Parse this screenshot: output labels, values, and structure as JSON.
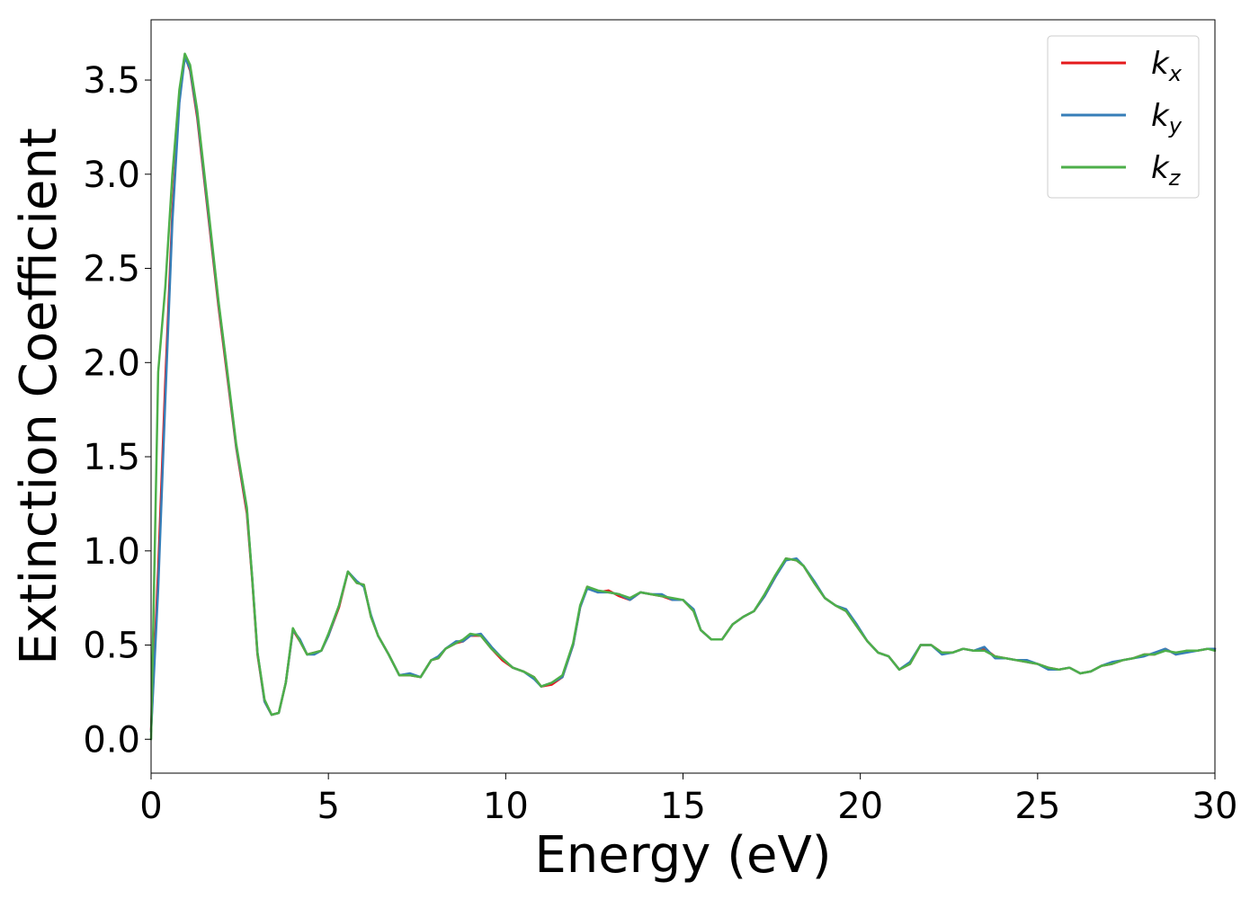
{
  "chart_data": {
    "type": "line",
    "title": "",
    "xlabel": "Energy (eV)",
    "ylabel": "Extinction Coefficient",
    "xlim": [
      0,
      30
    ],
    "ylim": [
      -0.18,
      3.82
    ],
    "xticks": [
      0,
      5,
      10,
      15,
      20,
      25,
      30
    ],
    "xtick_labels": [
      "0",
      "5",
      "10",
      "15",
      "20",
      "25",
      "30"
    ],
    "yticks": [
      0.0,
      0.5,
      1.0,
      1.5,
      2.0,
      2.5,
      3.0,
      3.5
    ],
    "ytick_labels": [
      "0.0",
      "0.5",
      "1.0",
      "1.5",
      "2.0",
      "2.5",
      "3.0",
      "3.5"
    ],
    "grid": false,
    "legend_position": "top-right",
    "series": [
      {
        "name": "k",
        "subscript": "x",
        "color": "#e41a1c",
        "x": [
          0,
          0.2,
          0.4,
          0.6,
          0.8,
          0.95,
          1.1,
          1.3,
          1.6,
          1.9,
          2.1,
          2.4,
          2.7,
          2.85,
          3.0,
          3.2,
          3.4,
          3.6,
          3.8,
          4.0,
          4.2,
          4.4,
          4.6,
          4.8,
          5.0,
          5.3,
          5.55,
          5.8,
          6.0,
          6.2,
          6.4,
          6.7,
          7.0,
          7.3,
          7.6,
          7.9,
          8.1,
          8.3,
          8.6,
          8.8,
          9.0,
          9.3,
          9.6,
          9.9,
          10.2,
          10.5,
          10.8,
          11.0,
          11.3,
          11.6,
          11.9,
          12.1,
          12.3,
          12.6,
          12.9,
          13.2,
          13.5,
          13.8,
          14.1,
          14.4,
          14.7,
          15.0,
          15.3,
          15.5,
          15.8,
          16.1,
          16.4,
          16.7,
          17.0,
          17.3,
          17.6,
          17.9,
          18.2,
          18.4,
          18.7,
          19.0,
          19.3,
          19.6,
          19.9,
          20.2,
          20.5,
          20.8,
          21.1,
          21.4,
          21.7,
          22.0,
          22.3,
          22.6,
          22.9,
          23.2,
          23.5,
          23.8,
          24.1,
          24.4,
          24.7,
          25.0,
          25.3,
          25.6,
          25.9,
          26.2,
          26.5,
          26.8,
          27.1,
          27.4,
          27.7,
          28.0,
          28.3,
          28.6,
          28.9,
          29.2,
          29.5,
          29.8,
          30.0
        ],
        "y": [
          0.05,
          0.9,
          1.9,
          2.8,
          3.4,
          3.63,
          3.55,
          3.3,
          2.8,
          2.3,
          2.0,
          1.55,
          1.2,
          0.85,
          0.45,
          0.2,
          0.13,
          0.14,
          0.3,
          0.58,
          0.52,
          0.45,
          0.46,
          0.47,
          0.55,
          0.7,
          0.89,
          0.83,
          0.82,
          0.65,
          0.55,
          0.45,
          0.34,
          0.34,
          0.33,
          0.42,
          0.43,
          0.48,
          0.51,
          0.52,
          0.55,
          0.55,
          0.48,
          0.42,
          0.38,
          0.36,
          0.33,
          0.28,
          0.29,
          0.33,
          0.5,
          0.7,
          0.81,
          0.78,
          0.79,
          0.76,
          0.74,
          0.78,
          0.77,
          0.76,
          0.74,
          0.74,
          0.68,
          0.58,
          0.53,
          0.53,
          0.61,
          0.65,
          0.68,
          0.76,
          0.86,
          0.96,
          0.95,
          0.92,
          0.83,
          0.75,
          0.71,
          0.68,
          0.6,
          0.52,
          0.46,
          0.44,
          0.37,
          0.4,
          0.5,
          0.5,
          0.46,
          0.46,
          0.48,
          0.47,
          0.48,
          0.44,
          0.43,
          0.42,
          0.41,
          0.4,
          0.38,
          0.37,
          0.38,
          0.35,
          0.36,
          0.39,
          0.4,
          0.42,
          0.43,
          0.45,
          0.45,
          0.48,
          0.45,
          0.47,
          0.47,
          0.48,
          0.48
        ]
      },
      {
        "name": "k",
        "subscript": "y",
        "color": "#377eb8",
        "x": [
          0,
          0.2,
          0.4,
          0.6,
          0.8,
          0.95,
          1.1,
          1.3,
          1.6,
          1.9,
          2.1,
          2.4,
          2.7,
          2.85,
          3.0,
          3.2,
          3.4,
          3.6,
          3.8,
          4.0,
          4.2,
          4.4,
          4.6,
          4.8,
          5.0,
          5.3,
          5.55,
          5.8,
          6.0,
          6.2,
          6.4,
          6.7,
          7.0,
          7.3,
          7.6,
          7.9,
          8.1,
          8.3,
          8.6,
          8.8,
          9.0,
          9.3,
          9.6,
          9.9,
          10.2,
          10.5,
          10.8,
          11.0,
          11.3,
          11.6,
          11.9,
          12.1,
          12.3,
          12.6,
          12.9,
          13.2,
          13.5,
          13.8,
          14.1,
          14.4,
          14.7,
          15.0,
          15.3,
          15.5,
          15.8,
          16.1,
          16.4,
          16.7,
          17.0,
          17.3,
          17.6,
          17.9,
          18.2,
          18.4,
          18.7,
          19.0,
          19.3,
          19.6,
          19.9,
          20.2,
          20.5,
          20.8,
          21.1,
          21.4,
          21.7,
          22.0,
          22.3,
          22.6,
          22.9,
          23.2,
          23.5,
          23.8,
          24.1,
          24.4,
          24.7,
          25.0,
          25.3,
          25.6,
          25.9,
          26.2,
          26.5,
          26.8,
          27.1,
          27.4,
          27.7,
          28.0,
          28.3,
          28.6,
          28.9,
          29.2,
          29.5,
          29.8,
          30.0
        ],
        "y": [
          0.04,
          0.8,
          1.8,
          2.75,
          3.38,
          3.62,
          3.56,
          3.32,
          2.82,
          2.32,
          2.02,
          1.56,
          1.22,
          0.86,
          0.46,
          0.2,
          0.13,
          0.14,
          0.3,
          0.58,
          0.53,
          0.45,
          0.45,
          0.47,
          0.55,
          0.71,
          0.89,
          0.84,
          0.81,
          0.66,
          0.55,
          0.45,
          0.34,
          0.35,
          0.33,
          0.42,
          0.44,
          0.48,
          0.52,
          0.52,
          0.55,
          0.56,
          0.49,
          0.43,
          0.38,
          0.36,
          0.32,
          0.28,
          0.3,
          0.33,
          0.5,
          0.7,
          0.8,
          0.78,
          0.78,
          0.77,
          0.74,
          0.78,
          0.77,
          0.77,
          0.74,
          0.74,
          0.69,
          0.58,
          0.53,
          0.53,
          0.61,
          0.65,
          0.68,
          0.76,
          0.86,
          0.95,
          0.96,
          0.92,
          0.84,
          0.75,
          0.71,
          0.69,
          0.61,
          0.52,
          0.46,
          0.44,
          0.37,
          0.41,
          0.5,
          0.5,
          0.45,
          0.46,
          0.48,
          0.47,
          0.49,
          0.43,
          0.43,
          0.42,
          0.42,
          0.4,
          0.37,
          0.37,
          0.38,
          0.35,
          0.36,
          0.39,
          0.41,
          0.42,
          0.43,
          0.44,
          0.46,
          0.48,
          0.45,
          0.46,
          0.47,
          0.48,
          0.48
        ]
      },
      {
        "name": "k",
        "subscript": "z",
        "color": "#4daf4a",
        "x": [
          0,
          0.2,
          0.4,
          0.6,
          0.8,
          0.95,
          1.1,
          1.3,
          1.6,
          1.9,
          2.1,
          2.4,
          2.7,
          2.85,
          3.0,
          3.2,
          3.4,
          3.6,
          3.8,
          4.0,
          4.2,
          4.4,
          4.6,
          4.8,
          5.0,
          5.3,
          5.55,
          5.8,
          6.0,
          6.2,
          6.4,
          6.7,
          7.0,
          7.3,
          7.6,
          7.9,
          8.1,
          8.3,
          8.6,
          8.8,
          9.0,
          9.3,
          9.6,
          9.9,
          10.2,
          10.5,
          10.8,
          11.0,
          11.3,
          11.6,
          11.9,
          12.1,
          12.3,
          12.6,
          12.9,
          13.2,
          13.5,
          13.8,
          14.1,
          14.4,
          14.7,
          15.0,
          15.3,
          15.5,
          15.8,
          16.1,
          16.4,
          16.7,
          17.0,
          17.3,
          17.6,
          17.9,
          18.2,
          18.4,
          18.7,
          19.0,
          19.3,
          19.6,
          19.9,
          20.2,
          20.5,
          20.8,
          21.1,
          21.4,
          21.7,
          22.0,
          22.3,
          22.6,
          22.9,
          23.2,
          23.5,
          23.8,
          24.1,
          24.4,
          24.7,
          25.0,
          25.3,
          25.6,
          25.9,
          26.2,
          26.5,
          26.8,
          27.1,
          27.4,
          27.7,
          28.0,
          28.3,
          28.6,
          28.9,
          29.2,
          29.5,
          29.8,
          30.0
        ],
        "y": [
          0.0,
          1.95,
          2.4,
          3.0,
          3.45,
          3.64,
          3.58,
          3.34,
          2.84,
          2.33,
          2.03,
          1.57,
          1.23,
          0.86,
          0.46,
          0.21,
          0.13,
          0.14,
          0.3,
          0.59,
          0.52,
          0.45,
          0.46,
          0.47,
          0.56,
          0.71,
          0.89,
          0.83,
          0.82,
          0.65,
          0.55,
          0.45,
          0.34,
          0.34,
          0.33,
          0.42,
          0.43,
          0.48,
          0.51,
          0.53,
          0.56,
          0.55,
          0.48,
          0.43,
          0.38,
          0.36,
          0.33,
          0.28,
          0.3,
          0.34,
          0.51,
          0.71,
          0.81,
          0.79,
          0.78,
          0.77,
          0.75,
          0.78,
          0.77,
          0.76,
          0.75,
          0.74,
          0.68,
          0.58,
          0.53,
          0.53,
          0.61,
          0.65,
          0.68,
          0.77,
          0.87,
          0.96,
          0.95,
          0.92,
          0.83,
          0.75,
          0.71,
          0.68,
          0.6,
          0.52,
          0.46,
          0.44,
          0.37,
          0.4,
          0.5,
          0.5,
          0.46,
          0.46,
          0.48,
          0.47,
          0.47,
          0.44,
          0.43,
          0.42,
          0.41,
          0.4,
          0.38,
          0.37,
          0.38,
          0.35,
          0.36,
          0.39,
          0.4,
          0.42,
          0.43,
          0.45,
          0.45,
          0.47,
          0.46,
          0.47,
          0.47,
          0.48,
          0.47
        ]
      }
    ]
  }
}
